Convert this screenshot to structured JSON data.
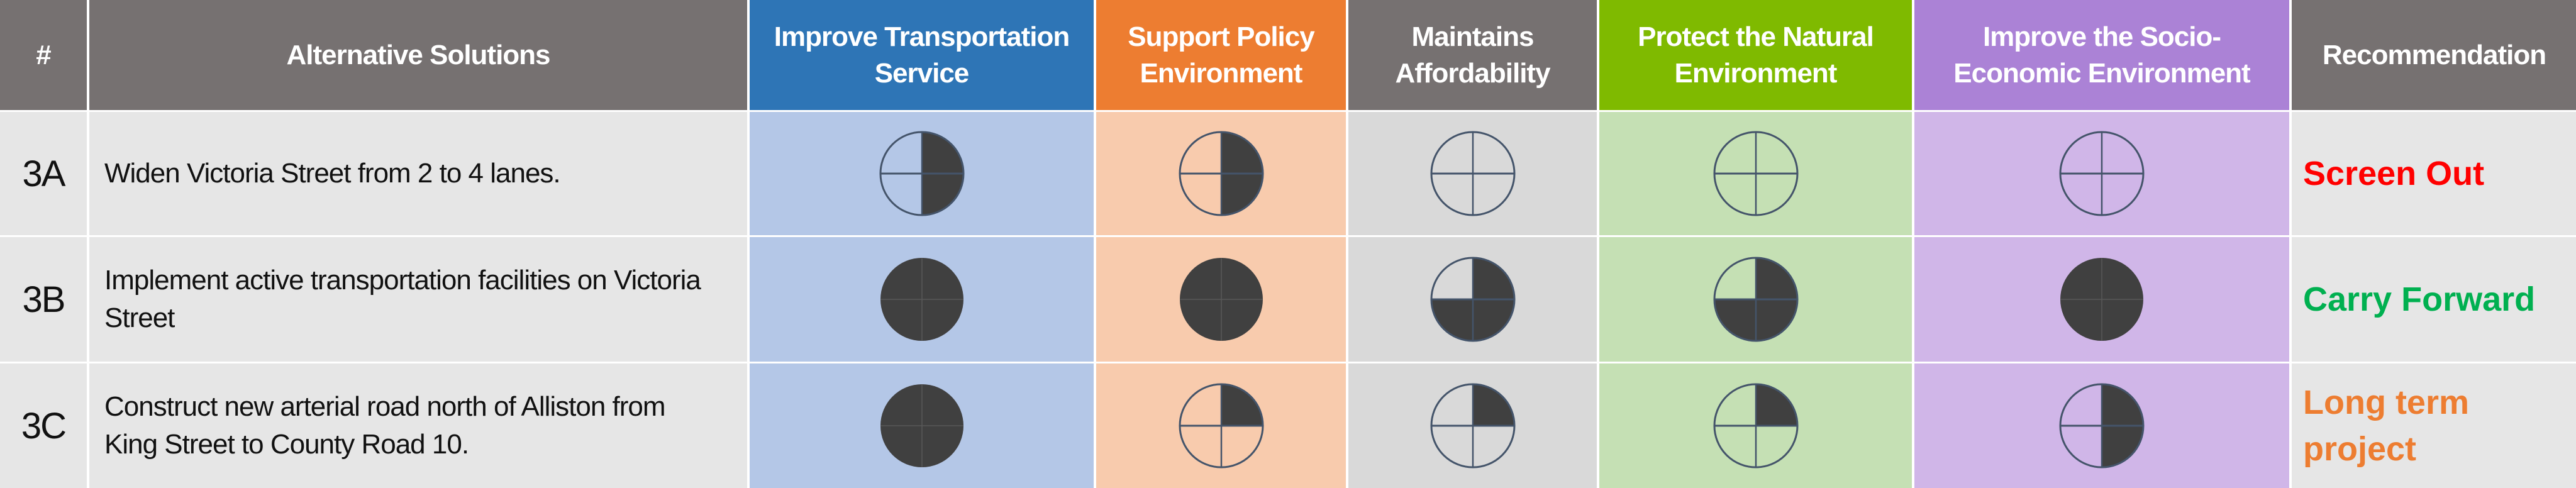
{
  "table": {
    "headers": {
      "id": "#",
      "alternatives": "Alternative Solutions",
      "transport": "Improve Transportation Service",
      "policy": "Support Policy Environment",
      "afford": "Maintains Affordability",
      "natural": "Protect the Natural Environment",
      "socio": "Improve the Socio-Economic Environment",
      "recommendation": "Recommendation"
    },
    "header_colors": {
      "id": "#767171",
      "alternatives": "#767171",
      "transport": "#2e75b6",
      "policy": "#ed7d31",
      "afford": "#767171",
      "natural": "#7fba00",
      "socio": "#ab82d6",
      "recommendation": "#767171"
    },
    "rating_legend": {
      "icon": "harvey-ball",
      "scale": "0 = empty circle, 1 = quarter filled, 2 = half filled, 3 = three-quarters filled, 4 = full"
    },
    "rows": [
      {
        "id": "3A",
        "alternative": "Widen Victoria Street from 2 to 4 lanes.",
        "ratings": {
          "transport": 2,
          "policy": 2,
          "afford": 0,
          "natural": 0,
          "socio": 0
        },
        "recommendation": "Screen Out",
        "recommendation_color": "#ff0000"
      },
      {
        "id": "3B",
        "alternative": "Implement active transportation facilities on Victoria Street",
        "ratings": {
          "transport": 4,
          "policy": 4,
          "afford": 3,
          "natural": 3,
          "socio": 4
        },
        "recommendation": "Carry Forward",
        "recommendation_color": "#00b050"
      },
      {
        "id": "3C",
        "alternative": "Construct new arterial road north of Alliston from King Street to County Road 10.",
        "ratings": {
          "transport": 4,
          "policy": 1,
          "afford": 1,
          "natural": 1,
          "socio": 2
        },
        "recommendation": "Long term project",
        "recommendation_color": "#ed7d31"
      }
    ]
  }
}
